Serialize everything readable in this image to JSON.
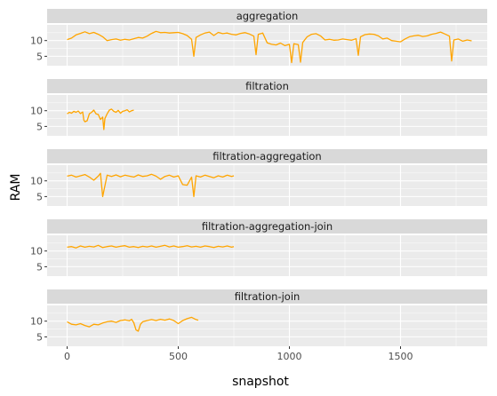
{
  "chart_data": {
    "type": "line",
    "xlabel": "snapshot",
    "ylabel": "RAM",
    "x_ticks": [
      0,
      500,
      1000,
      1500
    ],
    "y_ticks": [
      5,
      10
    ],
    "xlim": [
      -90,
      1890
    ],
    "ylim": [
      2,
      15
    ],
    "grid": true,
    "legend": "none",
    "colors": {
      "line": "#ffa500",
      "panel": "#ebebeb",
      "strip": "#d9d9d9",
      "grid": "#ffffff"
    },
    "series": [
      {
        "name": "aggregation",
        "x": [
          0,
          20,
          40,
          60,
          80,
          100,
          120,
          140,
          160,
          180,
          200,
          220,
          240,
          260,
          280,
          300,
          320,
          340,
          360,
          380,
          400,
          420,
          440,
          460,
          480,
          500,
          520,
          540,
          560,
          570,
          580,
          600,
          620,
          640,
          660,
          680,
          700,
          720,
          740,
          760,
          780,
          800,
          820,
          840,
          850,
          860,
          880,
          900,
          920,
          940,
          960,
          980,
          1000,
          1010,
          1020,
          1040,
          1050,
          1060,
          1080,
          1100,
          1120,
          1140,
          1160,
          1180,
          1200,
          1220,
          1240,
          1260,
          1280,
          1300,
          1310,
          1320,
          1340,
          1360,
          1380,
          1400,
          1420,
          1440,
          1460,
          1480,
          1500,
          1520,
          1540,
          1560,
          1580,
          1600,
          1620,
          1640,
          1660,
          1680,
          1700,
          1720,
          1730,
          1740,
          1760,
          1780,
          1800,
          1820
        ],
        "y": [
          10.3,
          10.8,
          11.8,
          12.3,
          12.8,
          12.2,
          12.6,
          12.0,
          11.2,
          10.0,
          10.3,
          10.5,
          10.1,
          10.4,
          10.2,
          10.6,
          11.0,
          10.8,
          11.4,
          12.3,
          12.9,
          12.5,
          12.6,
          12.4,
          12.5,
          12.6,
          12.2,
          11.6,
          10.4,
          5.0,
          11.0,
          11.8,
          12.4,
          12.7,
          11.6,
          12.6,
          12.2,
          12.4,
          12.0,
          11.8,
          12.3,
          12.5,
          12.1,
          11.4,
          5.5,
          12.0,
          12.4,
          9.3,
          8.8,
          8.6,
          9.2,
          8.4,
          8.8,
          3.0,
          9.0,
          8.7,
          3.1,
          9.4,
          11.2,
          12.0,
          12.2,
          11.5,
          10.2,
          10.4,
          10.1,
          10.2,
          10.5,
          10.3,
          10.1,
          10.6,
          5.3,
          11.2,
          11.9,
          12.1,
          12.0,
          11.5,
          10.5,
          10.8,
          10.0,
          9.8,
          9.6,
          10.5,
          11.2,
          11.5,
          11.7,
          11.3,
          11.5,
          12.0,
          12.3,
          12.7,
          12.1,
          11.4,
          3.5,
          10.2,
          10.5,
          9.8,
          10.2,
          9.9
        ]
      },
      {
        "name": "filtration",
        "x": [
          0,
          10,
          20,
          30,
          40,
          50,
          60,
          70,
          75,
          80,
          90,
          100,
          110,
          120,
          130,
          140,
          150,
          160,
          165,
          170,
          180,
          190,
          200,
          210,
          220,
          230,
          240,
          250,
          260,
          270,
          280,
          290,
          300
        ],
        "y": [
          9.0,
          9.5,
          9.2,
          9.8,
          9.5,
          9.9,
          9.1,
          9.6,
          7.0,
          6.5,
          6.8,
          9.0,
          9.5,
          10.2,
          9.0,
          8.8,
          7.2,
          8.0,
          4.0,
          7.5,
          9.0,
          10.2,
          10.5,
          9.8,
          9.5,
          10.1,
          9.2,
          9.8,
          10.0,
          10.3,
          9.6,
          10.0,
          10.2
        ]
      },
      {
        "name": "filtration-aggregation",
        "x": [
          0,
          20,
          40,
          60,
          80,
          100,
          120,
          140,
          150,
          160,
          180,
          200,
          220,
          240,
          260,
          280,
          300,
          320,
          340,
          360,
          380,
          400,
          420,
          440,
          460,
          480,
          500,
          520,
          540,
          560,
          570,
          580,
          600,
          620,
          640,
          660,
          680,
          700,
          720,
          740,
          750
        ],
        "y": [
          11.5,
          11.8,
          11.2,
          11.6,
          12.0,
          11.2,
          10.2,
          11.5,
          12.4,
          5.0,
          11.8,
          11.4,
          11.9,
          11.3,
          11.8,
          11.5,
          11.2,
          11.9,
          11.4,
          11.6,
          12.1,
          11.5,
          10.5,
          11.4,
          11.8,
          11.2,
          11.6,
          8.8,
          8.6,
          11.2,
          5.0,
          11.6,
          11.2,
          11.8,
          11.4,
          11.0,
          11.6,
          11.2,
          11.8,
          11.4,
          11.6
        ]
      },
      {
        "name": "filtration-aggregation-join",
        "x": [
          0,
          20,
          40,
          60,
          80,
          100,
          120,
          140,
          160,
          180,
          200,
          220,
          240,
          260,
          280,
          300,
          320,
          340,
          360,
          380,
          400,
          420,
          440,
          460,
          480,
          500,
          520,
          540,
          560,
          580,
          600,
          620,
          640,
          660,
          680,
          700,
          720,
          740,
          750
        ],
        "y": [
          11.2,
          11.4,
          11.0,
          11.6,
          11.2,
          11.5,
          11.3,
          11.8,
          11.1,
          11.4,
          11.6,
          11.2,
          11.5,
          11.7,
          11.2,
          11.4,
          11.1,
          11.5,
          11.3,
          11.6,
          11.2,
          11.5,
          11.8,
          11.3,
          11.6,
          11.2,
          11.4,
          11.7,
          11.3,
          11.5,
          11.2,
          11.6,
          11.4,
          11.1,
          11.5,
          11.3,
          11.6,
          11.2,
          11.4
        ]
      },
      {
        "name": "filtration-join",
        "x": [
          0,
          20,
          40,
          60,
          80,
          100,
          120,
          140,
          160,
          180,
          200,
          220,
          240,
          260,
          280,
          290,
          300,
          310,
          320,
          330,
          340,
          360,
          380,
          400,
          420,
          440,
          460,
          480,
          500,
          520,
          540,
          560,
          580,
          590
        ],
        "y": [
          9.8,
          9.0,
          8.8,
          9.2,
          8.6,
          8.2,
          9.0,
          8.8,
          9.4,
          9.8,
          10.0,
          9.6,
          10.2,
          10.4,
          10.1,
          10.6,
          9.5,
          7.2,
          6.8,
          9.0,
          9.8,
          10.2,
          10.5,
          10.2,
          10.6,
          10.3,
          10.7,
          10.2,
          9.2,
          10.2,
          10.8,
          11.2,
          10.5,
          10.3
        ]
      }
    ]
  }
}
